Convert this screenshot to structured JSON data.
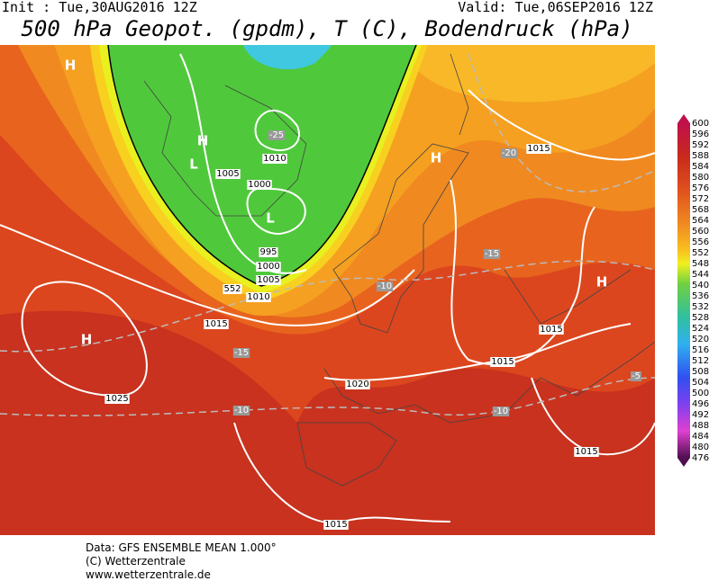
{
  "header": {
    "init": "Init : Tue,30AUG2016 12Z",
    "valid": "Valid: Tue,06SEP2016 12Z",
    "title": "500 hPa Geopot. (gpdm), T (C), Bodendruck (hPa)"
  },
  "map": {
    "labels": [
      "H",
      "H",
      "L",
      "-25",
      "1010",
      "1005",
      "1000",
      "L",
      "995",
      "1000",
      "1005",
      "552",
      "1010",
      "H",
      "-20",
      "1015",
      "-15",
      "-10",
      "H",
      "1015",
      "H",
      "-15",
      "1015",
      "1015",
      "1020",
      "1025",
      "-10",
      "-10",
      "-5",
      "1015",
      "1015"
    ]
  },
  "legend": {
    "labels": [
      600,
      596,
      592,
      588,
      584,
      580,
      576,
      572,
      568,
      564,
      560,
      556,
      552,
      548,
      544,
      540,
      536,
      532,
      528,
      524,
      520,
      516,
      512,
      508,
      504,
      500,
      496,
      492,
      488,
      484,
      480,
      476
    ]
  },
  "footer": {
    "lines": [
      "Data: GFS ENSEMBLE MEAN 1.000°",
      "(C) Wetterzentrale",
      "www.wetterzentrale.de"
    ]
  }
}
